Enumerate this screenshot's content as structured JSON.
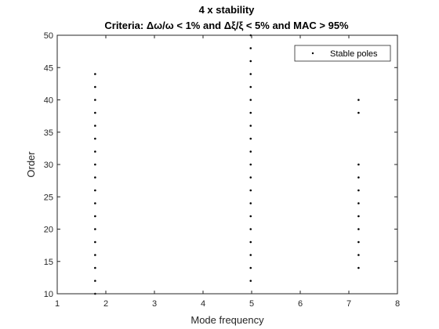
{
  "chart_data": {
    "type": "scatter",
    "title": "4 x stability",
    "subtitle": "Criteria: Δω/ω < 1% and Δξ/ξ < 5% and MAC > 95%",
    "xlabel": "Mode frequency",
    "ylabel": "Order",
    "xlim": [
      1,
      8
    ],
    "ylim": [
      10,
      50
    ],
    "xticks": [
      1,
      2,
      3,
      4,
      5,
      6,
      7,
      8
    ],
    "yticks": [
      10,
      15,
      20,
      25,
      30,
      35,
      40,
      45,
      50
    ],
    "grid": false,
    "legend_position": "top-right",
    "series": [
      {
        "name": "Stable poles",
        "color": "#000000",
        "marker": "point",
        "points": [
          {
            "x": 1.78,
            "y": 10
          },
          {
            "x": 1.78,
            "y": 12
          },
          {
            "x": 1.78,
            "y": 14
          },
          {
            "x": 1.78,
            "y": 16
          },
          {
            "x": 1.78,
            "y": 18
          },
          {
            "x": 1.78,
            "y": 20
          },
          {
            "x": 1.78,
            "y": 22
          },
          {
            "x": 1.78,
            "y": 24
          },
          {
            "x": 1.78,
            "y": 26
          },
          {
            "x": 1.78,
            "y": 28
          },
          {
            "x": 1.78,
            "y": 30
          },
          {
            "x": 1.78,
            "y": 32
          },
          {
            "x": 1.78,
            "y": 34
          },
          {
            "x": 1.78,
            "y": 36
          },
          {
            "x": 1.78,
            "y": 38
          },
          {
            "x": 1.78,
            "y": 40
          },
          {
            "x": 1.78,
            "y": 42
          },
          {
            "x": 1.78,
            "y": 44
          },
          {
            "x": 4.98,
            "y": 12
          },
          {
            "x": 4.98,
            "y": 14
          },
          {
            "x": 4.98,
            "y": 16
          },
          {
            "x": 4.98,
            "y": 18
          },
          {
            "x": 4.98,
            "y": 20
          },
          {
            "x": 4.98,
            "y": 22
          },
          {
            "x": 4.98,
            "y": 24
          },
          {
            "x": 4.98,
            "y": 26
          },
          {
            "x": 4.98,
            "y": 28
          },
          {
            "x": 4.98,
            "y": 30
          },
          {
            "x": 4.98,
            "y": 32
          },
          {
            "x": 4.98,
            "y": 34
          },
          {
            "x": 4.98,
            "y": 36
          },
          {
            "x": 4.98,
            "y": 38
          },
          {
            "x": 4.98,
            "y": 40
          },
          {
            "x": 4.98,
            "y": 42
          },
          {
            "x": 4.98,
            "y": 44
          },
          {
            "x": 4.98,
            "y": 46
          },
          {
            "x": 4.98,
            "y": 48
          },
          {
            "x": 4.98,
            "y": 50
          },
          {
            "x": 7.2,
            "y": 14
          },
          {
            "x": 7.2,
            "y": 16
          },
          {
            "x": 7.2,
            "y": 18
          },
          {
            "x": 7.2,
            "y": 20
          },
          {
            "x": 7.2,
            "y": 22
          },
          {
            "x": 7.2,
            "y": 24
          },
          {
            "x": 7.2,
            "y": 26
          },
          {
            "x": 7.2,
            "y": 28
          },
          {
            "x": 7.2,
            "y": 30
          },
          {
            "x": 7.2,
            "y": 38
          },
          {
            "x": 7.2,
            "y": 40
          }
        ]
      }
    ]
  }
}
